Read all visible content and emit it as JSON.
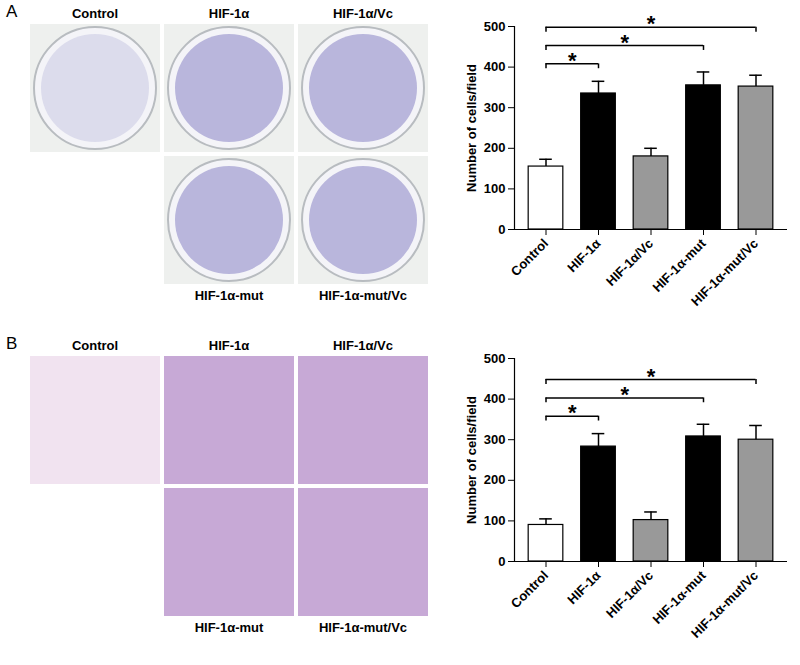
{
  "chart_data": [
    {
      "type": "bar",
      "panel": "A",
      "categories": [
        "Control",
        "HIF-1α",
        "HIF-1α/Vc",
        "HIF-1α-mut",
        "HIF-1α-mut/Vc"
      ],
      "values": [
        155,
        335,
        180,
        355,
        352
      ],
      "errors": [
        18,
        30,
        20,
        33,
        28
      ],
      "colors": [
        "#ffffff",
        "#000000",
        "#999999",
        "#000000",
        "#999999"
      ],
      "ylabel": "Number of cells/field",
      "ylim": [
        0,
        500
      ],
      "yticks": [
        0,
        100,
        200,
        300,
        400,
        500
      ],
      "significance": [
        {
          "from": "Control",
          "to": "HIF-1α",
          "label": "*"
        },
        {
          "from": "Control",
          "to": "HIF-1α-mut",
          "label": "*"
        },
        {
          "from": "Control",
          "to": "HIF-1α-mut/Vc",
          "label": "*"
        }
      ]
    },
    {
      "type": "bar",
      "panel": "B",
      "categories": [
        "Control",
        "HIF-1α",
        "HIF-1α/Vc",
        "HIF-1α-mut",
        "HIF-1α-mut/Vc"
      ],
      "values": [
        90,
        283,
        102,
        308,
        300
      ],
      "errors": [
        15,
        32,
        20,
        30,
        35
      ],
      "colors": [
        "#ffffff",
        "#000000",
        "#999999",
        "#000000",
        "#999999"
      ],
      "ylabel": "Number of cells/field",
      "ylim": [
        0,
        500
      ],
      "yticks": [
        0,
        100,
        200,
        300,
        400,
        500
      ],
      "significance": [
        {
          "from": "Control",
          "to": "HIF-1α",
          "label": "*"
        },
        {
          "from": "Control",
          "to": "HIF-1α-mut",
          "label": "*"
        },
        {
          "from": "Control",
          "to": "HIF-1α-mut/Vc",
          "label": "*"
        }
      ]
    }
  ]
}
